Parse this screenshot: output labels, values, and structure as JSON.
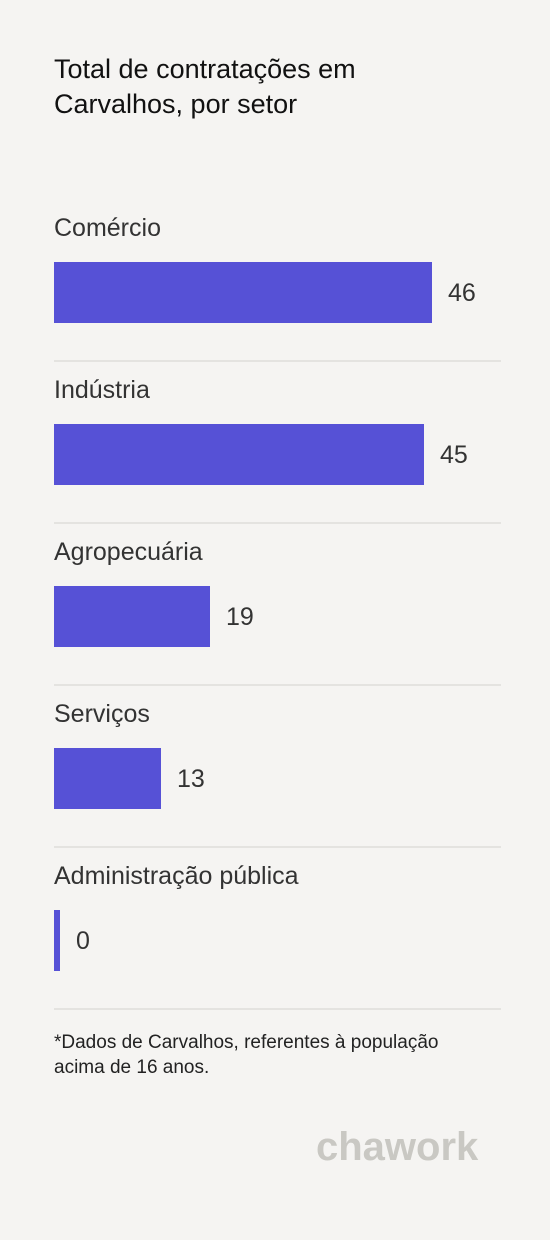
{
  "title": "Total de contratações em Carvalhos, por setor",
  "footnote": "*Dados de Carvalhos, referentes à população acima de 16 anos.",
  "brand": "chawork",
  "colors": {
    "bar": "#5651d6",
    "background": "#f5f4f2",
    "brand": "#c9c8c3"
  },
  "chart_data": {
    "type": "bar",
    "orientation": "horizontal",
    "title": "Total de contratações em Carvalhos, por setor",
    "categories": [
      "Comércio",
      "Indústria",
      "Agropecuária",
      "Serviços",
      "Administração pública"
    ],
    "values": [
      46,
      45,
      19,
      13,
      0
    ],
    "xlim": [
      0,
      46
    ],
    "grid": false,
    "legend": "none"
  }
}
